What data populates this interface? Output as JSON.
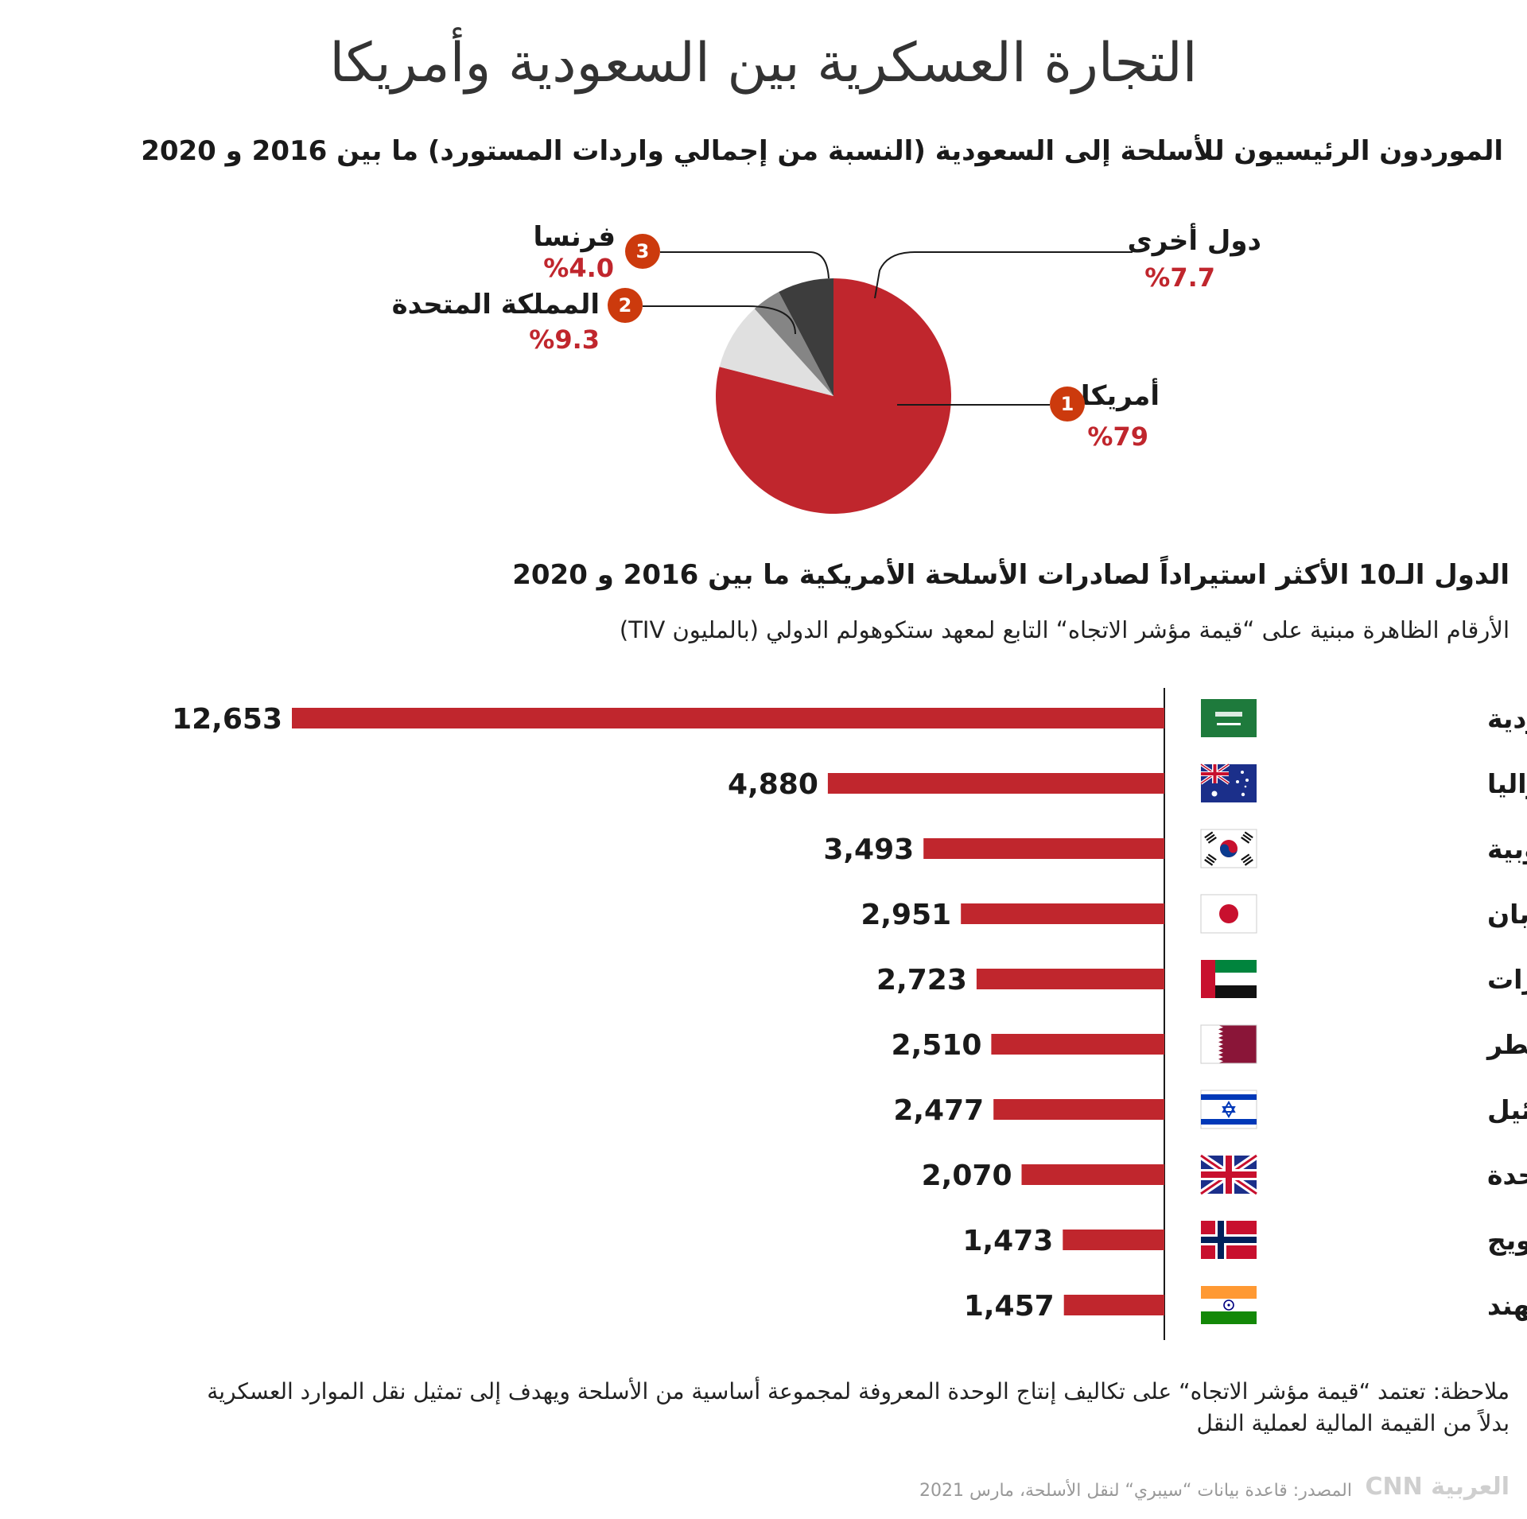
{
  "title": "التجارة العسكرية بين السعودية وأمريكا",
  "pie_heading": "الموردون الرئيسيون للأسلحة إلى السعودية (النسبة من إجمالي واردات المستورد) ما بين 2016 و 2020",
  "bar_heading": "الدول الـ10 الأكثر استيراداً لصادرات الأسلحة الأمريكية ما بين 2016 و 2020",
  "bar_subheading": "الأرقام الظاهرة مبنية على “قيمة مؤشر الاتجاه“ التابع لمعهد ستكوهولم الدولي (بالمليون TIV)",
  "pie_labels": [
    {
      "name": "أمريكا",
      "pct": "%79",
      "rank": "1"
    },
    {
      "name": "المملكة المتحدة",
      "pct": "%9.3",
      "rank": "2"
    },
    {
      "name": "فرنسا",
      "pct": "%4.0",
      "rank": "3"
    },
    {
      "name": "دول أخرى",
      "pct": "%7.7"
    }
  ],
  "note_line1": "ملاحظة: تعتمد “قيمة مؤشر الاتجاه“ على تكاليف إنتاج الوحدة المعروفة لمجموعة أساسية من الأسلحة ويهدف إلى تمثيل نقل الموارد العسكرية",
  "note_line2": "بدلاً من القيمة المالية لعملية النقل",
  "source": "المصدر: قاعدة بيانات “سيبري“ لنقل الأسلحة، مارس 2021",
  "logo": "CNN العربية",
  "colors": {
    "accent": "#c0262d",
    "badge": "#cc3a0d",
    "uk_slice": "#e0e0e0",
    "france_slice": "#858585",
    "others_slice": "#3d3d3d"
  },
  "chart_data": [
    {
      "type": "pie",
      "title": "الموردون الرئيسيون للأسلحة إلى السعودية (النسبة من إجمالي واردات المستورد) ما بين 2016 و 2020",
      "categories": [
        "أمريكا",
        "المملكة المتحدة",
        "فرنسا",
        "دول أخرى"
      ],
      "values": [
        79,
        9.3,
        4.0,
        7.7
      ],
      "colors": [
        "#c0262d",
        "#e0e0e0",
        "#858585",
        "#3d3d3d"
      ]
    },
    {
      "type": "bar",
      "orientation": "horizontal",
      "title": "الدول الـ10 الأكثر استيراداً لصادرات الأسلحة الأمريكية ما بين 2016 و 2020",
      "categories": [
        "السعودية",
        "أستراليا",
        "كوريا الجنوبية",
        "اليابان",
        "الإمارات",
        "قطر",
        "إسرائيل",
        "المملكة المتحدة",
        "النرويج",
        "الهند"
      ],
      "values": [
        12653,
        4880,
        3493,
        2951,
        2723,
        2510,
        2477,
        2070,
        1473,
        1457
      ],
      "value_labels": [
        "12,653",
        "4,880",
        "3,493",
        "2,951",
        "2,723",
        "2,510",
        "2,477",
        "2,070",
        "1,473",
        "1,457"
      ],
      "flags": [
        "saudi-flag-icon",
        "australia-flag-icon",
        "south-korea-flag-icon",
        "japan-flag-icon",
        "uae-flag-icon",
        "qatar-flag-icon",
        "israel-flag-icon",
        "uk-flag-icon",
        "norway-flag-icon",
        "india-flag-icon"
      ],
      "color": "#c0262d"
    }
  ]
}
